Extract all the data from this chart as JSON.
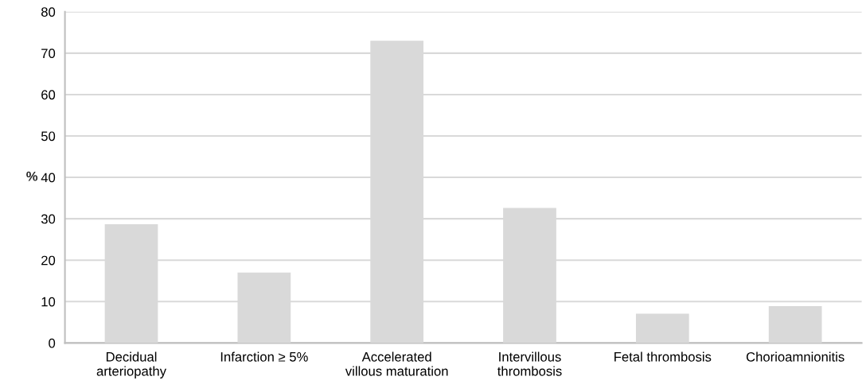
{
  "chart_data": {
    "type": "bar",
    "ylabel": "%",
    "categories": [
      "Decidual\narteriopathy",
      "Infarction ≥ 5%",
      "Accelerated\nvillous maturation",
      "Intervillous\nthrombosis",
      "Fetal thrombosis",
      "Chorioamnionitis"
    ],
    "values": [
      28.7,
      17.0,
      73.0,
      32.6,
      7.1,
      8.9
    ],
    "color": "#d9d9d9",
    "ylim": [
      0,
      80
    ],
    "yticks": [
      0,
      10,
      20,
      30,
      40,
      50,
      60,
      70,
      80
    ],
    "grid": "y"
  }
}
